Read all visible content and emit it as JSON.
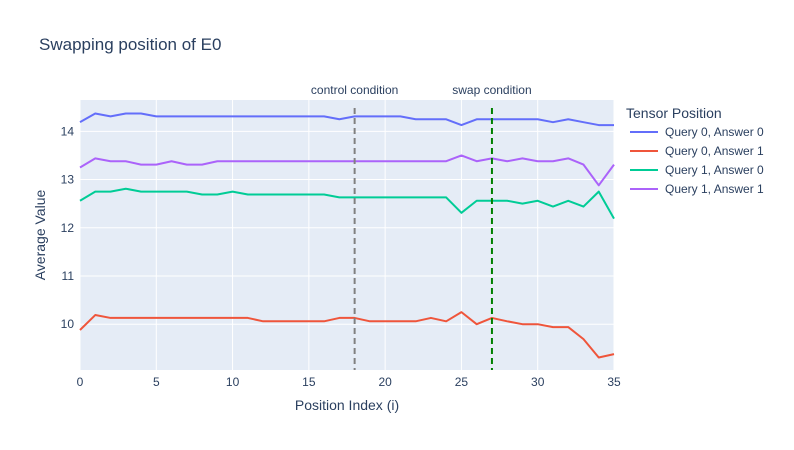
{
  "chart_data": {
    "type": "line",
    "title": "Swapping position of E0",
    "xlabel": "Position Index (i)",
    "ylabel": "Average Value",
    "xlim": [
      0,
      35
    ],
    "ylim": [
      9.05,
      14.65
    ],
    "xticks": [
      0,
      5,
      10,
      15,
      20,
      25,
      30,
      35
    ],
    "yticks": [
      10,
      11,
      12,
      13,
      14
    ],
    "legend_title": "Tensor Position",
    "legend_position": "right",
    "grid": true,
    "colors": {
      "plot_bg": "#E5ECF6",
      "grid": "#ffffff",
      "text": "#2a3f5f"
    },
    "x": [
      0,
      1,
      2,
      3,
      4,
      5,
      6,
      7,
      8,
      9,
      10,
      11,
      12,
      13,
      14,
      15,
      16,
      17,
      18,
      19,
      20,
      21,
      22,
      23,
      24,
      25,
      26,
      27,
      28,
      29,
      30,
      31,
      32,
      33,
      34,
      35
    ],
    "series": [
      {
        "name": "Query 0, Answer 0",
        "color": "#636EFA",
        "values": [
          14.19,
          14.37,
          14.31,
          14.37,
          14.37,
          14.31,
          14.31,
          14.31,
          14.31,
          14.31,
          14.31,
          14.31,
          14.31,
          14.31,
          14.31,
          14.31,
          14.31,
          14.25,
          14.31,
          14.31,
          14.31,
          14.31,
          14.25,
          14.25,
          14.25,
          14.13,
          14.25,
          14.25,
          14.25,
          14.25,
          14.25,
          14.19,
          14.25,
          14.19,
          14.13,
          14.13
        ]
      },
      {
        "name": "Query 0, Answer 1",
        "color": "#EF553B",
        "values": [
          9.88,
          10.19,
          10.13,
          10.13,
          10.13,
          10.13,
          10.13,
          10.13,
          10.13,
          10.13,
          10.13,
          10.13,
          10.06,
          10.06,
          10.06,
          10.06,
          10.06,
          10.13,
          10.13,
          10.06,
          10.06,
          10.06,
          10.06,
          10.13,
          10.06,
          10.25,
          10.0,
          10.13,
          10.06,
          10.0,
          10.0,
          9.94,
          9.94,
          9.69,
          9.31,
          9.38
        ]
      },
      {
        "name": "Query 1, Answer 0",
        "color": "#00CC96",
        "values": [
          12.56,
          12.75,
          12.75,
          12.81,
          12.75,
          12.75,
          12.75,
          12.75,
          12.69,
          12.69,
          12.75,
          12.69,
          12.69,
          12.69,
          12.69,
          12.69,
          12.69,
          12.63,
          12.63,
          12.63,
          12.63,
          12.63,
          12.63,
          12.63,
          12.63,
          12.31,
          12.56,
          12.56,
          12.56,
          12.5,
          12.56,
          12.44,
          12.56,
          12.44,
          12.75,
          12.19
        ]
      },
      {
        "name": "Query 1, Answer 1",
        "color": "#AB63FA",
        "values": [
          13.25,
          13.44,
          13.38,
          13.38,
          13.31,
          13.31,
          13.38,
          13.31,
          13.31,
          13.38,
          13.38,
          13.38,
          13.38,
          13.38,
          13.38,
          13.38,
          13.38,
          13.38,
          13.38,
          13.38,
          13.38,
          13.38,
          13.38,
          13.38,
          13.38,
          13.5,
          13.38,
          13.44,
          13.38,
          13.44,
          13.38,
          13.38,
          13.44,
          13.31,
          12.88,
          13.31
        ]
      }
    ],
    "vlines": [
      {
        "x": 18,
        "label": "control condition",
        "color": "#808080"
      },
      {
        "x": 27,
        "label": "swap condition",
        "color": "#008000"
      }
    ]
  }
}
